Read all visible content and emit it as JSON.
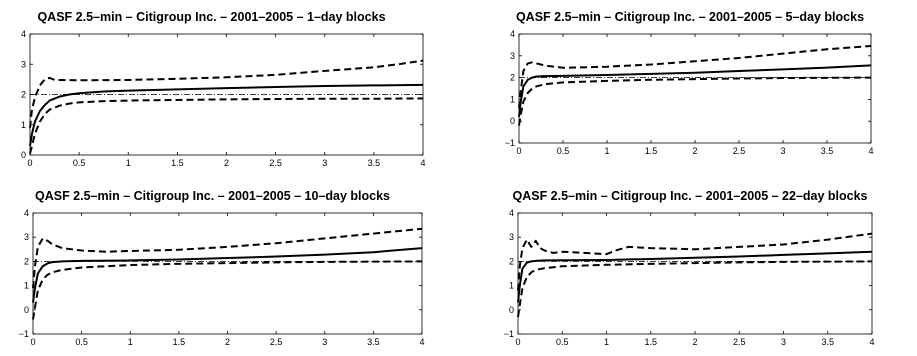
{
  "chart_data": [
    {
      "type": "line",
      "title": "QASF 2.5–min – Citigroup Inc. – 2001–2005 – 1–day blocks",
      "xlim": [
        0,
        4
      ],
      "ylim": [
        0,
        4
      ],
      "xticks": [
        "0",
        "0.5",
        "1",
        "1.5",
        "2",
        "2.5",
        "3",
        "3.5",
        "4"
      ],
      "yticks": [
        "0",
        "1",
        "2",
        "3",
        "4"
      ],
      "reference_line": {
        "y": 2,
        "style": "dash-dot"
      },
      "series": [
        {
          "role": "estimate",
          "style": "solid",
          "x": [
            0,
            0.02,
            0.05,
            0.1,
            0.15,
            0.2,
            0.3,
            0.4,
            0.5,
            0.75,
            1,
            1.5,
            2,
            2.5,
            3,
            3.5,
            4
          ],
          "y": [
            0.3,
            0.7,
            1.1,
            1.45,
            1.65,
            1.8,
            1.93,
            2.0,
            2.04,
            2.1,
            2.13,
            2.17,
            2.21,
            2.25,
            2.28,
            2.3,
            2.32
          ]
        },
        {
          "role": "upper band",
          "style": "dashed",
          "x": [
            0,
            0.02,
            0.05,
            0.1,
            0.15,
            0.2,
            0.25,
            0.3,
            0.5,
            1,
            1.5,
            2,
            2.5,
            3,
            3.5,
            3.75,
            4
          ],
          "y": [
            0.9,
            1.5,
            1.9,
            2.3,
            2.5,
            2.55,
            2.48,
            2.48,
            2.47,
            2.48,
            2.52,
            2.57,
            2.65,
            2.78,
            2.9,
            3.0,
            3.12
          ]
        },
        {
          "role": "lower band",
          "style": "dashed",
          "x": [
            0,
            0.02,
            0.05,
            0.1,
            0.15,
            0.2,
            0.3,
            0.4,
            0.5,
            0.75,
            1,
            1.5,
            2,
            2.5,
            3,
            3.5,
            4
          ],
          "y": [
            0.05,
            0.3,
            0.7,
            1.1,
            1.35,
            1.5,
            1.63,
            1.7,
            1.74,
            1.78,
            1.8,
            1.82,
            1.84,
            1.85,
            1.86,
            1.86,
            1.87
          ]
        }
      ]
    },
    {
      "type": "line",
      "title": "QASF 2.5–min – Citigroup Inc. – 2001–2005 – 5–day blocks",
      "xlim": [
        0,
        4
      ],
      "ylim": [
        -1,
        4
      ],
      "xticks": [
        "0",
        "0.5",
        "1",
        "1.5",
        "2",
        "2.5",
        "3",
        "3.5",
        "4"
      ],
      "yticks": [
        "−1",
        "0",
        "1",
        "2",
        "3",
        "4"
      ],
      "reference_line": {
        "y": 2,
        "style": "dash-dot"
      },
      "series": [
        {
          "role": "estimate",
          "style": "solid",
          "x": [
            0,
            0.02,
            0.05,
            0.1,
            0.15,
            0.2,
            0.3,
            0.5,
            1,
            1.5,
            2,
            2.5,
            3,
            3.5,
            4
          ],
          "y": [
            0.2,
            0.9,
            1.6,
            1.9,
            2.0,
            2.05,
            2.07,
            2.08,
            2.12,
            2.17,
            2.22,
            2.3,
            2.38,
            2.46,
            2.56
          ]
        },
        {
          "role": "upper band",
          "style": "dashed",
          "x": [
            0,
            0.02,
            0.05,
            0.1,
            0.15,
            0.2,
            0.3,
            0.4,
            0.5,
            1,
            1.5,
            2,
            2.5,
            3,
            3.5,
            4
          ],
          "y": [
            0.6,
            1.4,
            2.3,
            2.65,
            2.7,
            2.65,
            2.55,
            2.5,
            2.45,
            2.5,
            2.6,
            2.75,
            2.9,
            3.1,
            3.3,
            3.45
          ]
        },
        {
          "role": "lower band",
          "style": "dashed",
          "x": [
            0,
            0.02,
            0.05,
            0.1,
            0.15,
            0.2,
            0.3,
            0.5,
            1,
            1.5,
            2,
            2.5,
            3,
            3.5,
            4
          ],
          "y": [
            -0.2,
            0.3,
            0.9,
            1.3,
            1.5,
            1.6,
            1.7,
            1.78,
            1.85,
            1.9,
            1.93,
            1.96,
            1.98,
            1.99,
            2.0
          ]
        }
      ]
    },
    {
      "type": "line",
      "title": "QASF 2.5–min – Citigroup Inc. – 2001–2005 – 10–day blocks",
      "xlim": [
        0,
        4
      ],
      "ylim": [
        -1,
        4
      ],
      "xticks": [
        "0",
        "0.5",
        "1",
        "1.5",
        "2",
        "2.5",
        "3",
        "3.5",
        "4"
      ],
      "yticks": [
        "−1",
        "0",
        "1",
        "2",
        "3",
        "4"
      ],
      "reference_line": {
        "y": 2,
        "style": "dash-dot"
      },
      "series": [
        {
          "role": "estimate",
          "style": "solid",
          "x": [
            0,
            0.02,
            0.05,
            0.1,
            0.15,
            0.2,
            0.3,
            0.5,
            1,
            1.5,
            2,
            2.5,
            3,
            3.5,
            4
          ],
          "y": [
            0.3,
            0.9,
            1.5,
            1.8,
            1.92,
            1.97,
            2.0,
            2.02,
            2.04,
            2.08,
            2.14,
            2.2,
            2.28,
            2.38,
            2.55
          ]
        },
        {
          "role": "upper band",
          "style": "dashed",
          "x": [
            0,
            0.02,
            0.05,
            0.1,
            0.15,
            0.2,
            0.3,
            0.5,
            0.75,
            1,
            1.5,
            2,
            2.5,
            3,
            3.5,
            4
          ],
          "y": [
            0.9,
            1.8,
            2.6,
            2.95,
            2.85,
            2.7,
            2.55,
            2.45,
            2.4,
            2.43,
            2.48,
            2.6,
            2.75,
            2.95,
            3.15,
            3.35
          ]
        },
        {
          "role": "lower band",
          "style": "dashed",
          "x": [
            0,
            0.02,
            0.05,
            0.1,
            0.15,
            0.2,
            0.3,
            0.5,
            1,
            1.5,
            2,
            2.5,
            3,
            3.5,
            4
          ],
          "y": [
            -0.4,
            0.1,
            0.8,
            1.25,
            1.45,
            1.55,
            1.65,
            1.75,
            1.85,
            1.9,
            1.93,
            1.96,
            1.98,
            1.99,
            2.0
          ]
        }
      ]
    },
    {
      "type": "line",
      "title": "QASF 2.5–min – Citigroup Inc. – 2001–2005 – 22–day blocks",
      "xlim": [
        0,
        4
      ],
      "ylim": [
        -1,
        4
      ],
      "xticks": [
        "0",
        "0.5",
        "1",
        "1.5",
        "2",
        "2.5",
        "3",
        "3.5",
        "4"
      ],
      "yticks": [
        "−1",
        "0",
        "1",
        "2",
        "3",
        "4"
      ],
      "reference_line": {
        "y": 2,
        "style": "dash-dot"
      },
      "series": [
        {
          "role": "estimate",
          "style": "solid",
          "x": [
            0,
            0.02,
            0.05,
            0.1,
            0.15,
            0.2,
            0.3,
            0.5,
            1,
            1.5,
            2,
            2.5,
            3,
            3.5,
            4
          ],
          "y": [
            0.3,
            1.0,
            1.7,
            1.95,
            2.0,
            2.02,
            2.04,
            2.05,
            2.06,
            2.1,
            2.15,
            2.2,
            2.27,
            2.33,
            2.4
          ]
        },
        {
          "role": "upper band",
          "style": "dashed",
          "x": [
            0,
            0.02,
            0.05,
            0.1,
            0.15,
            0.2,
            0.25,
            0.3,
            0.4,
            0.5,
            0.75,
            1,
            1.1,
            1.25,
            1.5,
            2,
            2.5,
            3,
            3.5,
            4
          ],
          "y": [
            0.8,
            1.8,
            2.55,
            2.9,
            2.6,
            2.85,
            2.55,
            2.45,
            2.35,
            2.4,
            2.35,
            2.3,
            2.45,
            2.6,
            2.55,
            2.5,
            2.6,
            2.7,
            2.9,
            3.15
          ]
        },
        {
          "role": "lower band",
          "style": "dashed",
          "x": [
            0,
            0.02,
            0.05,
            0.1,
            0.15,
            0.2,
            0.3,
            0.5,
            1,
            1.5,
            2,
            2.5,
            3,
            3.5,
            4
          ],
          "y": [
            -0.3,
            0.2,
            0.9,
            1.35,
            1.55,
            1.65,
            1.72,
            1.8,
            1.86,
            1.9,
            1.93,
            1.96,
            1.98,
            1.99,
            2.0
          ]
        }
      ]
    }
  ]
}
